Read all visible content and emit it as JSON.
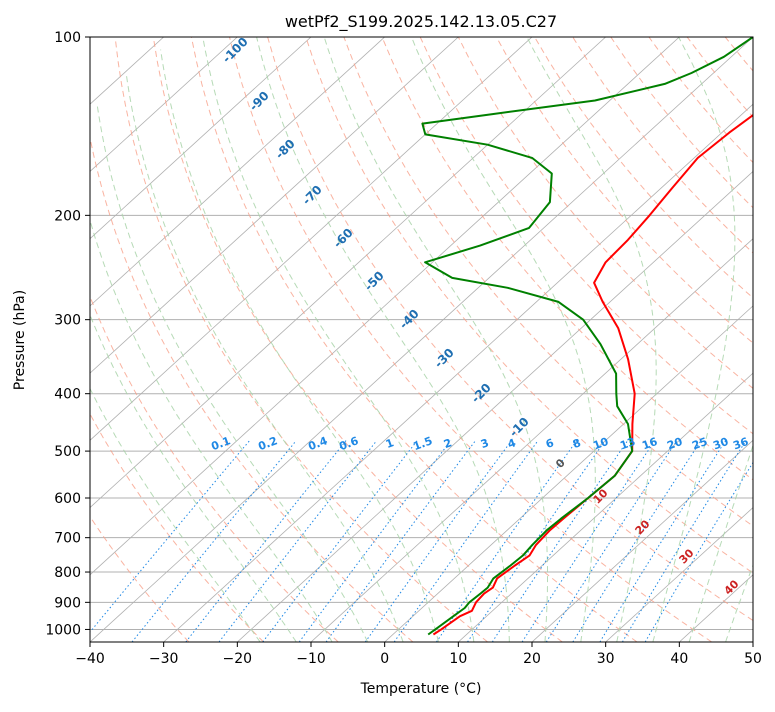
{
  "chart_data": {
    "type": "line",
    "title": "wetPf2_S199.2025.142.13.05.C27",
    "xlabel": "Temperature (°C)",
    "ylabel": "Pressure (hPa)",
    "xlim": [
      -40,
      50
    ],
    "ylim": [
      1050,
      100
    ],
    "y_scale": "log",
    "grid": true,
    "x_ticks": [
      -40,
      -30,
      -20,
      -10,
      0,
      10,
      20,
      30,
      40,
      50
    ],
    "y_ticks": [
      100,
      200,
      300,
      400,
      500,
      600,
      700,
      800,
      900,
      1000
    ],
    "skew": "skew-T log-P",
    "series": [
      {
        "role": "temperature",
        "color": "#ff0000",
        "points": [
          {
            "p": 1020,
            "t": 5.5
          },
          {
            "p": 1000,
            "t": 5.8
          },
          {
            "p": 950,
            "t": 6.4
          },
          {
            "p": 930,
            "t": 7.2
          },
          {
            "p": 900,
            "t": 6.5
          },
          {
            "p": 870,
            "t": 6.3
          },
          {
            "p": 850,
            "t": 6.6
          },
          {
            "p": 820,
            "t": 5.8
          },
          {
            "p": 780,
            "t": 6.3
          },
          {
            "p": 750,
            "t": 6.8
          },
          {
            "p": 720,
            "t": 6.1
          },
          {
            "p": 680,
            "t": 5.8
          },
          {
            "p": 650,
            "t": 5.9
          },
          {
            "p": 600,
            "t": 6.2
          },
          {
            "p": 550,
            "t": 6.5
          },
          {
            "p": 500,
            "t": 5.2
          },
          {
            "p": 450,
            "t": 1.2
          },
          {
            "p": 400,
            "t": -3.0
          },
          {
            "p": 350,
            "t": -9.0
          },
          {
            "p": 310,
            "t": -15.0
          },
          {
            "p": 280,
            "t": -21.0
          },
          {
            "p": 260,
            "t": -25.0
          },
          {
            "p": 240,
            "t": -26.5
          },
          {
            "p": 220,
            "t": -26.8
          },
          {
            "p": 200,
            "t": -27.5
          },
          {
            "p": 180,
            "t": -28.5
          },
          {
            "p": 160,
            "t": -29.5
          },
          {
            "p": 145,
            "t": -29.0
          },
          {
            "p": 130,
            "t": -28.0
          },
          {
            "p": 120,
            "t": -28.0
          },
          {
            "p": 110,
            "t": -27.0
          },
          {
            "p": 100,
            "t": -26.0
          }
        ]
      },
      {
        "role": "dewpoint",
        "color": "#008000",
        "points": [
          {
            "p": 1020,
            "t": 4.8
          },
          {
            "p": 1000,
            "t": 5.0
          },
          {
            "p": 950,
            "t": 5.5
          },
          {
            "p": 920,
            "t": 5.8
          },
          {
            "p": 900,
            "t": 5.6
          },
          {
            "p": 870,
            "t": 5.8
          },
          {
            "p": 850,
            "t": 5.9
          },
          {
            "p": 820,
            "t": 5.3
          },
          {
            "p": 780,
            "t": 5.7
          },
          {
            "p": 750,
            "t": 5.9
          },
          {
            "p": 720,
            "t": 5.6
          },
          {
            "p": 680,
            "t": 5.4
          },
          {
            "p": 650,
            "t": 5.6
          },
          {
            "p": 600,
            "t": 6.2
          },
          {
            "p": 550,
            "t": 6.5
          },
          {
            "p": 500,
            "t": 5.2
          },
          {
            "p": 450,
            "t": 0.6
          },
          {
            "p": 420,
            "t": -3.5
          },
          {
            "p": 400,
            "t": -5.5
          },
          {
            "p": 370,
            "t": -8.5
          },
          {
            "p": 330,
            "t": -15.0
          },
          {
            "p": 300,
            "t": -21.0
          },
          {
            "p": 280,
            "t": -27.0
          },
          {
            "p": 265,
            "t": -36.0
          },
          {
            "p": 255,
            "t": -45.0
          },
          {
            "p": 240,
            "t": -51.0
          },
          {
            "p": 225,
            "t": -46.0
          },
          {
            "p": 210,
            "t": -42.0
          },
          {
            "p": 190,
            "t": -43.0
          },
          {
            "p": 170,
            "t": -47.0
          },
          {
            "p": 160,
            "t": -52.0
          },
          {
            "p": 152,
            "t": -60.0
          },
          {
            "p": 146,
            "t": -70.0
          },
          {
            "p": 140,
            "t": -72.0
          },
          {
            "p": 135,
            "t": -64.0
          },
          {
            "p": 128,
            "t": -52.0
          },
          {
            "p": 120,
            "t": -45.0
          },
          {
            "p": 115,
            "t": -43.0
          },
          {
            "p": 108,
            "t": -41.0
          },
          {
            "p": 100,
            "t": -40.0
          }
        ]
      }
    ],
    "dry_adiabat_labels": [
      -100,
      -90,
      -80,
      -70,
      -60,
      -50,
      -40,
      -30,
      -20,
      -10
    ],
    "moist_adiabat_labels": [
      0,
      10,
      20,
      30,
      40
    ],
    "mixing_ratio_labels": [
      "0.1",
      "0.2",
      "0.4",
      "0.6",
      "1",
      "1.5",
      "2",
      "3",
      "4",
      "6",
      "8",
      "10",
      "13",
      "16",
      "20",
      "25",
      "30",
      "36"
    ],
    "colors": {
      "temperature": "#ff0000",
      "dewpoint": "#008000",
      "isotherm": "#b0b0b0",
      "dry_adiabat": "#f7a08a",
      "moist_adiabat": "#a9d3a9",
      "mixing_ratio": "#1e88e5",
      "dry_label": "#1f6fb2",
      "moist_label": "#cc2222"
    }
  }
}
